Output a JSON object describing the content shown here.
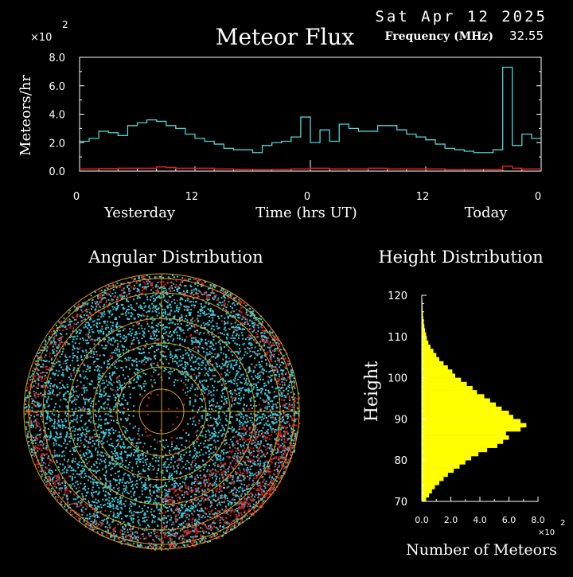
{
  "header": {
    "date": "Sat Apr 12 2025",
    "title": "Meteor Flux",
    "frequency_label": "Frequency (MHz)",
    "frequency_value": "32.55",
    "scale_mult": "×10",
    "scale_exp": "2"
  },
  "colors": {
    "background": "#000000",
    "flux_line": "#4fd6d6",
    "baseline_line": "#d42020",
    "polar_points_cyan": "#3ec8d8",
    "polar_points_red": "#d82020",
    "polar_rings": "#d8a018",
    "height_bars": "#ffff00"
  },
  "chart_data": [
    {
      "type": "line",
      "title": "Meteor Flux",
      "ylabel": "Meteors/hr",
      "xlabel": "Time (hrs UT)",
      "y_multiplier_label": "×10",
      "y_multiplier_exp": "2",
      "ylim": [
        0,
        8.0
      ],
      "xlim": [
        0,
        48
      ],
      "x_ticks": [
        {
          "x": 0,
          "label": "0"
        },
        {
          "x": 12,
          "label": "12"
        },
        {
          "x": 24,
          "label": "0"
        },
        {
          "x": 36,
          "label": "12"
        },
        {
          "x": 48,
          "label": "0"
        }
      ],
      "y_ticks": [
        "0.0",
        "2.0",
        "4.0",
        "6.0",
        "8.0"
      ],
      "day_labels": [
        {
          "x": 6.5,
          "label": "Yesterday"
        },
        {
          "x": 42.5,
          "label": "Today"
        }
      ],
      "series": [
        {
          "color": "#4fd6d6",
          "x": [
            0,
            1,
            2,
            3,
            4,
            5,
            6,
            7,
            8,
            9,
            10,
            11,
            12,
            13,
            14,
            15,
            16,
            17,
            18,
            19,
            20,
            21,
            22,
            23,
            24,
            25,
            26,
            27,
            28,
            29,
            30,
            31,
            32,
            33,
            34,
            35,
            36,
            37,
            38,
            39,
            40,
            41,
            42,
            43,
            44,
            45,
            46,
            47,
            48
          ],
          "y": [
            2.1,
            2.3,
            2.8,
            2.7,
            2.5,
            3.2,
            3.4,
            3.6,
            3.5,
            3.2,
            3.0,
            2.6,
            2.3,
            2.1,
            1.9,
            1.6,
            1.5,
            1.5,
            1.3,
            1.8,
            2.0,
            2.1,
            2.4,
            3.8,
            2.0,
            2.9,
            2.1,
            3.3,
            3.0,
            2.8,
            2.8,
            3.2,
            3.2,
            2.9,
            2.6,
            2.4,
            2.2,
            1.9,
            1.6,
            1.5,
            1.4,
            1.3,
            1.3,
            1.5,
            7.3,
            1.8,
            2.6,
            2.3,
            2.3
          ]
        },
        {
          "color": "#d42020",
          "x": [
            0,
            2,
            4,
            6,
            8,
            9,
            10,
            12,
            14,
            16,
            18,
            20,
            22,
            24,
            26,
            28,
            30,
            32,
            34,
            36,
            38,
            40,
            42,
            44,
            45,
            46,
            48
          ],
          "y": [
            0.15,
            0.17,
            0.2,
            0.2,
            0.3,
            0.25,
            0.2,
            0.2,
            0.15,
            0.12,
            0.1,
            0.12,
            0.15,
            0.2,
            0.15,
            0.15,
            0.2,
            0.15,
            0.15,
            0.15,
            0.1,
            0.1,
            0.1,
            0.35,
            0.2,
            0.15,
            0.15
          ]
        }
      ]
    },
    {
      "type": "scatter",
      "title": "Angular Distribution",
      "description_of_rings": "concentric rings every 15 degrees elevation with cross-hairs",
      "series": [
        {
          "color": "#3ec8d8",
          "points_shown": "dense cyan points across full circle, sparse near center"
        },
        {
          "color": "#d82020",
          "points_shown": "red points concentrated near rim, denser at lower-right"
        }
      ]
    },
    {
      "type": "bar",
      "orientation": "horizontal",
      "title": "Height Distribution",
      "xlabel": "Number of Meteors",
      "ylabel": "Height",
      "x_multiplier_label": "×10",
      "x_multiplier_exp": "2",
      "xlim": [
        0,
        8.0
      ],
      "ylim": [
        70,
        120
      ],
      "x_ticks": [
        "0.0",
        "2.0",
        "4.0",
        "6.0",
        "8.0"
      ],
      "y_ticks": [
        "70",
        "80",
        "90",
        "100",
        "110",
        "120"
      ],
      "categories": [
        70,
        71,
        72,
        73,
        74,
        75,
        76,
        77,
        78,
        79,
        80,
        81,
        82,
        83,
        84,
        85,
        86,
        87,
        88,
        89,
        90,
        91,
        92,
        93,
        94,
        95,
        96,
        97,
        98,
        99,
        100,
        101,
        102,
        103,
        104,
        105,
        106,
        107,
        108,
        109,
        110,
        111,
        112,
        113,
        114,
        115,
        116,
        117,
        118,
        119
      ],
      "values": [
        0.3,
        0.5,
        0.7,
        0.9,
        1.2,
        1.5,
        1.8,
        2.2,
        2.6,
        3.0,
        3.4,
        3.9,
        4.5,
        5.2,
        5.6,
        6.0,
        5.8,
        6.8,
        7.2,
        6.8,
        6.3,
        6.0,
        5.5,
        5.1,
        4.7,
        4.3,
        3.8,
        3.5,
        3.1,
        2.7,
        2.3,
        2.1,
        1.8,
        1.5,
        1.2,
        1.0,
        0.8,
        0.6,
        0.45,
        0.35,
        0.3,
        0.22,
        0.18,
        0.14,
        0.1,
        0.08,
        0.06,
        0.05,
        0.04,
        0.03
      ]
    }
  ]
}
